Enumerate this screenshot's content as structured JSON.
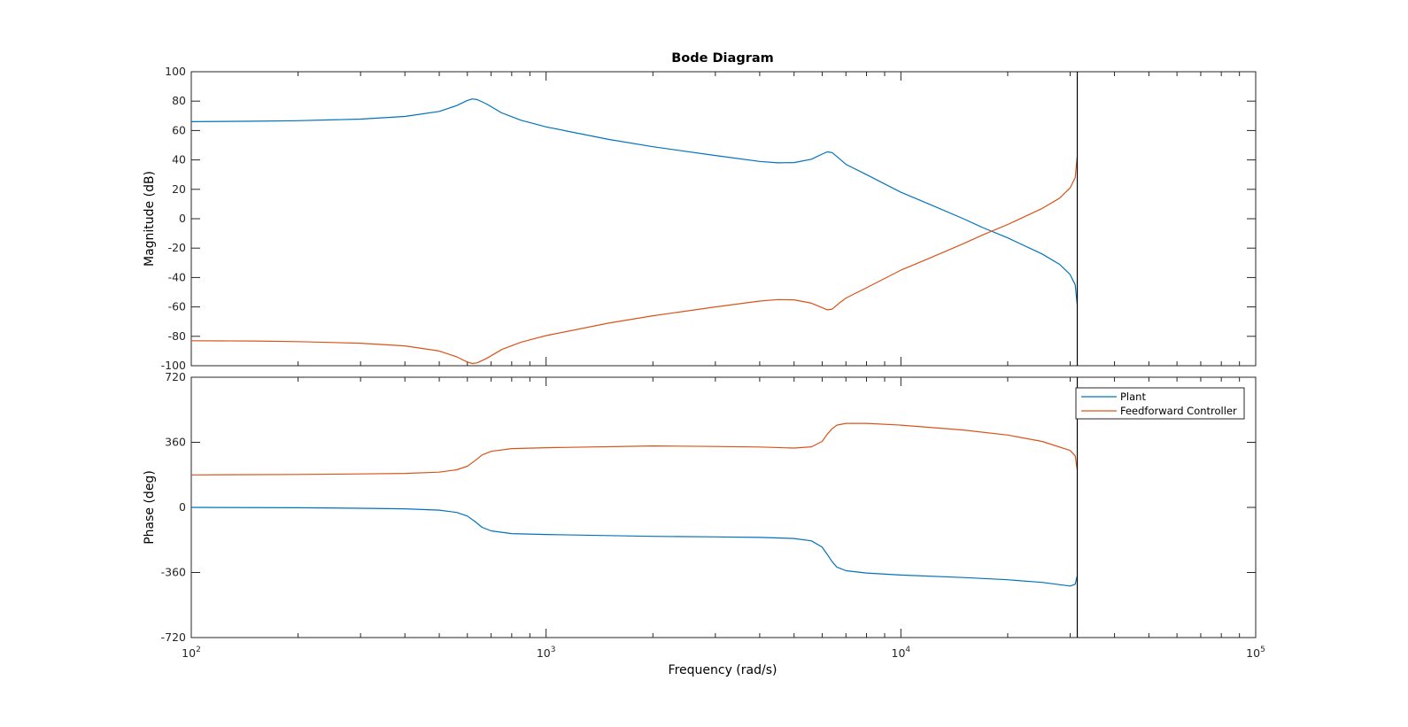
{
  "chart_data": {
    "type": "line",
    "title": "Bode Diagram",
    "xlabel": "Frequency  (rad/s)",
    "x_scale": "log",
    "xlim": [
      100,
      100000
    ],
    "x_ticks": [
      {
        "value": 100,
        "base": "10",
        "exp": "2"
      },
      {
        "value": 1000,
        "base": "10",
        "exp": "3"
      },
      {
        "value": 10000,
        "base": "10",
        "exp": "4"
      },
      {
        "value": 100000,
        "base": "10",
        "exp": "5"
      }
    ],
    "nyquist_frequency": 31416,
    "legend": {
      "position": "top-right",
      "entries": [
        "Plant",
        "Feedforward Controller"
      ]
    },
    "colors": {
      "Plant": "#0072bd",
      "Feedforward Controller": "#d95319",
      "axes": "#262626"
    },
    "grid": false,
    "panels": [
      {
        "ylabel": "Magnitude (dB)",
        "ylim": [
          -100,
          100
        ],
        "y_ticks": [
          "100",
          "80",
          "60",
          "40",
          "20",
          "0",
          "-20",
          "-40",
          "-60",
          "-80",
          "-100"
        ],
        "series": [
          {
            "name": "Plant",
            "x": [
              100,
              150,
              200,
              300,
              400,
              500,
              560,
              600,
              620,
              640,
              680,
              750,
              850,
              1000,
              1500,
              2000,
              3000,
              4000,
              4500,
              5000,
              5600,
              6000,
              6200,
              6400,
              6700,
              7000,
              8000,
              10000,
              12000,
              15000,
              17000,
              20000,
              25000,
              28000,
              30000,
              31000,
              31400
            ],
            "y": [
              66,
              66.3,
              66.7,
              67.8,
              69.6,
              73,
              77,
              80.5,
              81.5,
              81,
              78,
              72,
              67,
              62.5,
              54,
              49,
              43,
              39,
              38,
              38.2,
              40.5,
              44,
              45.5,
              45,
              41,
              37,
              30,
              18,
              10,
              0,
              -6,
              -13,
              -24,
              -31,
              -38,
              -45,
              -58
            ]
          },
          {
            "name": "Feedforward Controller",
            "x": [
              100,
              150,
              200,
              300,
              400,
              500,
              560,
              600,
              620,
              640,
              680,
              750,
              850,
              1000,
              1500,
              2000,
              3000,
              4000,
              4500,
              5000,
              5600,
              6000,
              6200,
              6400,
              6700,
              7000,
              8000,
              10000,
              12000,
              15000,
              17000,
              20000,
              25000,
              28000,
              30000,
              31000,
              31400
            ],
            "y": [
              -83,
              -83.2,
              -83.6,
              -84.7,
              -86.5,
              -90,
              -94,
              -97.5,
              -98.5,
              -98,
              -95,
              -89,
              -84,
              -79.5,
              -71,
              -66,
              -60,
              -56,
              -55,
              -55.2,
              -57.5,
              -60.5,
              -62,
              -61.5,
              -57.5,
              -54,
              -47,
              -35,
              -27,
              -17,
              -11,
              -4,
              7,
              14,
              21,
              28,
              42
            ]
          }
        ]
      },
      {
        "ylabel": "Phase (deg)",
        "ylim": [
          -720,
          720
        ],
        "y_ticks": [
          "720",
          "360",
          "0",
          "-360",
          "-720"
        ],
        "series": [
          {
            "name": "Plant",
            "x": [
              100,
              200,
              300,
              400,
              500,
              560,
              600,
              630,
              660,
              700,
              800,
              1000,
              2000,
              3000,
              4000,
              5000,
              5600,
              6000,
              6200,
              6400,
              6600,
              7000,
              8000,
              10000,
              15000,
              20000,
              25000,
              30000,
              31000,
              31400
            ],
            "y": [
              0,
              -2,
              -5,
              -8,
              -15,
              -28,
              -48,
              -78,
              -110,
              -130,
              -145,
              -150,
              -160,
              -163,
              -166,
              -172,
              -185,
              -220,
              -260,
              -300,
              -330,
              -350,
              -363,
              -374,
              -388,
              -400,
              -415,
              -435,
              -425,
              -380
            ]
          },
          {
            "name": "Feedforward Controller",
            "x": [
              100,
              200,
              300,
              400,
              500,
              560,
              600,
              630,
              660,
              700,
              800,
              1000,
              2000,
              3000,
              4000,
              5000,
              5600,
              6000,
              6200,
              6400,
              6600,
              7000,
              8000,
              10000,
              15000,
              20000,
              25000,
              30000,
              31000,
              31400
            ],
            "y": [
              180,
              182,
              185,
              188,
              195,
              208,
              228,
              258,
              290,
              310,
              325,
              330,
              340,
              337,
              334,
              328,
              335,
              365,
              405,
              435,
              455,
              465,
              465,
              455,
              428,
              400,
              365,
              315,
              285,
              210
            ]
          }
        ]
      }
    ]
  }
}
